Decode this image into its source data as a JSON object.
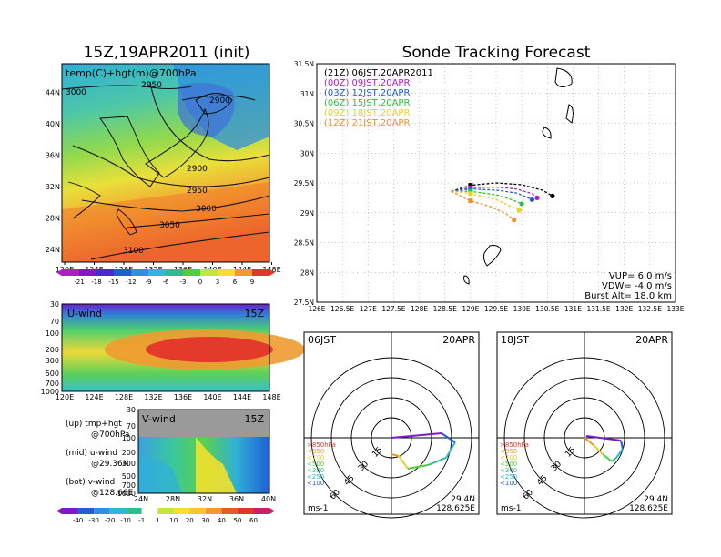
{
  "header": {
    "left_title": "15Z,19APR2011 (init)",
    "right_title": "Sonde Tracking Forecast"
  },
  "colors": {
    "purple": "#7d19c8",
    "blue": "#1f5fd2",
    "cyan": "#2fb8d5",
    "teal": "#2ebd8f",
    "green": "#4fcf3b",
    "lime": "#c5e63a",
    "yellow": "#f2e02d",
    "orange": "#f39a2d",
    "red": "#e3362b",
    "magenta": "#cf2ed3"
  },
  "chart_data": [
    {
      "type": "heatmap",
      "id": "map700",
      "title": "temp(C)+hgt(m)@700hPa",
      "x_ticks": [
        "120E",
        "124E",
        "128E",
        "132E",
        "136E",
        "140E",
        "144E",
        "148E"
      ],
      "y_ticks": [
        "24N",
        "28N",
        "32N",
        "36N",
        "40N",
        "44N"
      ],
      "contours": [
        "3000",
        "2950",
        "2900",
        "2900",
        "2950",
        "3000",
        "3050",
        "3100"
      ],
      "colorbar": [
        "-21",
        "-18",
        "-15",
        "-12",
        "-9",
        "-6",
        "-3",
        "0",
        "3",
        "6",
        "9"
      ]
    },
    {
      "type": "heatmap",
      "id": "uwind",
      "title": "U-wind",
      "time_label": "15Z",
      "x_ticks": [
        "120E",
        "124E",
        "128E",
        "132E",
        "136E",
        "140E",
        "144E",
        "148E"
      ],
      "y_ticks": [
        "30",
        "70",
        "100",
        "200",
        "300",
        "500",
        "700",
        "1000"
      ]
    },
    {
      "type": "heatmap",
      "id": "vwind",
      "title": "V-wind",
      "time_label": "15Z",
      "x_ticks": [
        "24N",
        "28N",
        "32N",
        "36N",
        "40N"
      ],
      "y_ticks": [
        "30",
        "70",
        "100",
        "200",
        "300",
        "500",
        "700",
        "1000"
      ],
      "colorbar": [
        "-40",
        "-30",
        "-20",
        "-10",
        "-1",
        "1",
        "10",
        "20",
        "30",
        "40",
        "50",
        "60"
      ]
    },
    {
      "type": "line",
      "id": "tracking",
      "title": "Sonde Tracking Forecast",
      "x_ticks": [
        "126E",
        "126.5E",
        "127E",
        "127.5E",
        "128E",
        "128.5E",
        "129E",
        "129.5E",
        "130E",
        "130.5E",
        "131E",
        "131.5E",
        "132E",
        "132.5E",
        "133E"
      ],
      "y_ticks": [
        "27.5N",
        "28N",
        "28.5N",
        "29N",
        "29.5N",
        "30N",
        "30.5N",
        "31N",
        "31.5N"
      ],
      "xlim": [
        126,
        133
      ],
      "ylim": [
        27.5,
        31.5
      ],
      "grid": true,
      "legend_position": "top-left",
      "series": [
        {
          "name": "(21Z)  06JST,20APR2011",
          "color": "#000000",
          "x": [
            128.62,
            129.0,
            129.5,
            130.0,
            130.4,
            130.6
          ],
          "y": [
            29.36,
            29.46,
            29.5,
            29.47,
            29.38,
            29.28
          ]
        },
        {
          "name": "(00Z)  09JST,20APR",
          "color": "#b01ec8",
          "x": [
            128.62,
            129.0,
            129.5,
            129.9,
            130.2,
            130.3
          ],
          "y": [
            29.36,
            29.42,
            29.43,
            29.4,
            29.32,
            29.25
          ]
        },
        {
          "name": "(03Z)  12JST,20APR",
          "color": "#1f5fd2",
          "x": [
            128.62,
            129.0,
            129.5,
            129.9,
            130.1,
            130.2
          ],
          "y": [
            29.36,
            29.4,
            29.38,
            29.33,
            29.26,
            29.22
          ]
        },
        {
          "name": "(06Z)  15JST,20APR",
          "color": "#2fbf3f",
          "x": [
            128.62,
            129.0,
            129.5,
            129.8,
            130.0
          ],
          "y": [
            29.36,
            29.36,
            29.3,
            29.22,
            29.15
          ]
        },
        {
          "name": "(09Z)  18JST,20APR",
          "color": "#e6d12a",
          "x": [
            128.62,
            129.0,
            129.5,
            129.8,
            129.95
          ],
          "y": [
            29.36,
            29.32,
            29.22,
            29.1,
            29.04
          ]
        },
        {
          "name": "(12Z)  21JST,20APR",
          "color": "#f0902a",
          "x": [
            128.62,
            129.0,
            129.4,
            129.7,
            129.85
          ],
          "y": [
            29.36,
            29.2,
            29.1,
            28.98,
            28.88
          ]
        }
      ],
      "info": [
        "VUP=  6.0  m/s",
        "VDW= -4.0  m/s",
        "Burst Alt=  18.0  km"
      ]
    },
    {
      "type": "line",
      "id": "hodo1",
      "title": "06JST",
      "date_label": "20APR",
      "ring_labels": [
        "15",
        "30",
        "45",
        "60"
      ],
      "unit_label": "ms-1",
      "location": [
        "29.4N",
        "128.625E"
      ],
      "pressure_legend": [
        ">850hPa",
        "<850",
        "<700",
        "<500",
        "<300",
        "<250",
        "<100"
      ]
    },
    {
      "type": "line",
      "id": "hodo2",
      "title": "18JST",
      "date_label": "20APR",
      "ring_labels": [
        "15",
        "30",
        "45",
        "60"
      ],
      "unit_label": "ms-1",
      "location": [
        "29.4N",
        "128.625E"
      ],
      "pressure_legend": [
        ">850hPa",
        "<850",
        "<700",
        "<500",
        "<300",
        "<250",
        "<100"
      ]
    }
  ],
  "left_legend": {
    "up": [
      "(up)  tmp+hgt",
      "@700hPa"
    ],
    "mid": [
      "(mid)  u-wind",
      "@29.36N"
    ],
    "bot": [
      "(bot)  v-wind",
      "@128.66E"
    ]
  }
}
